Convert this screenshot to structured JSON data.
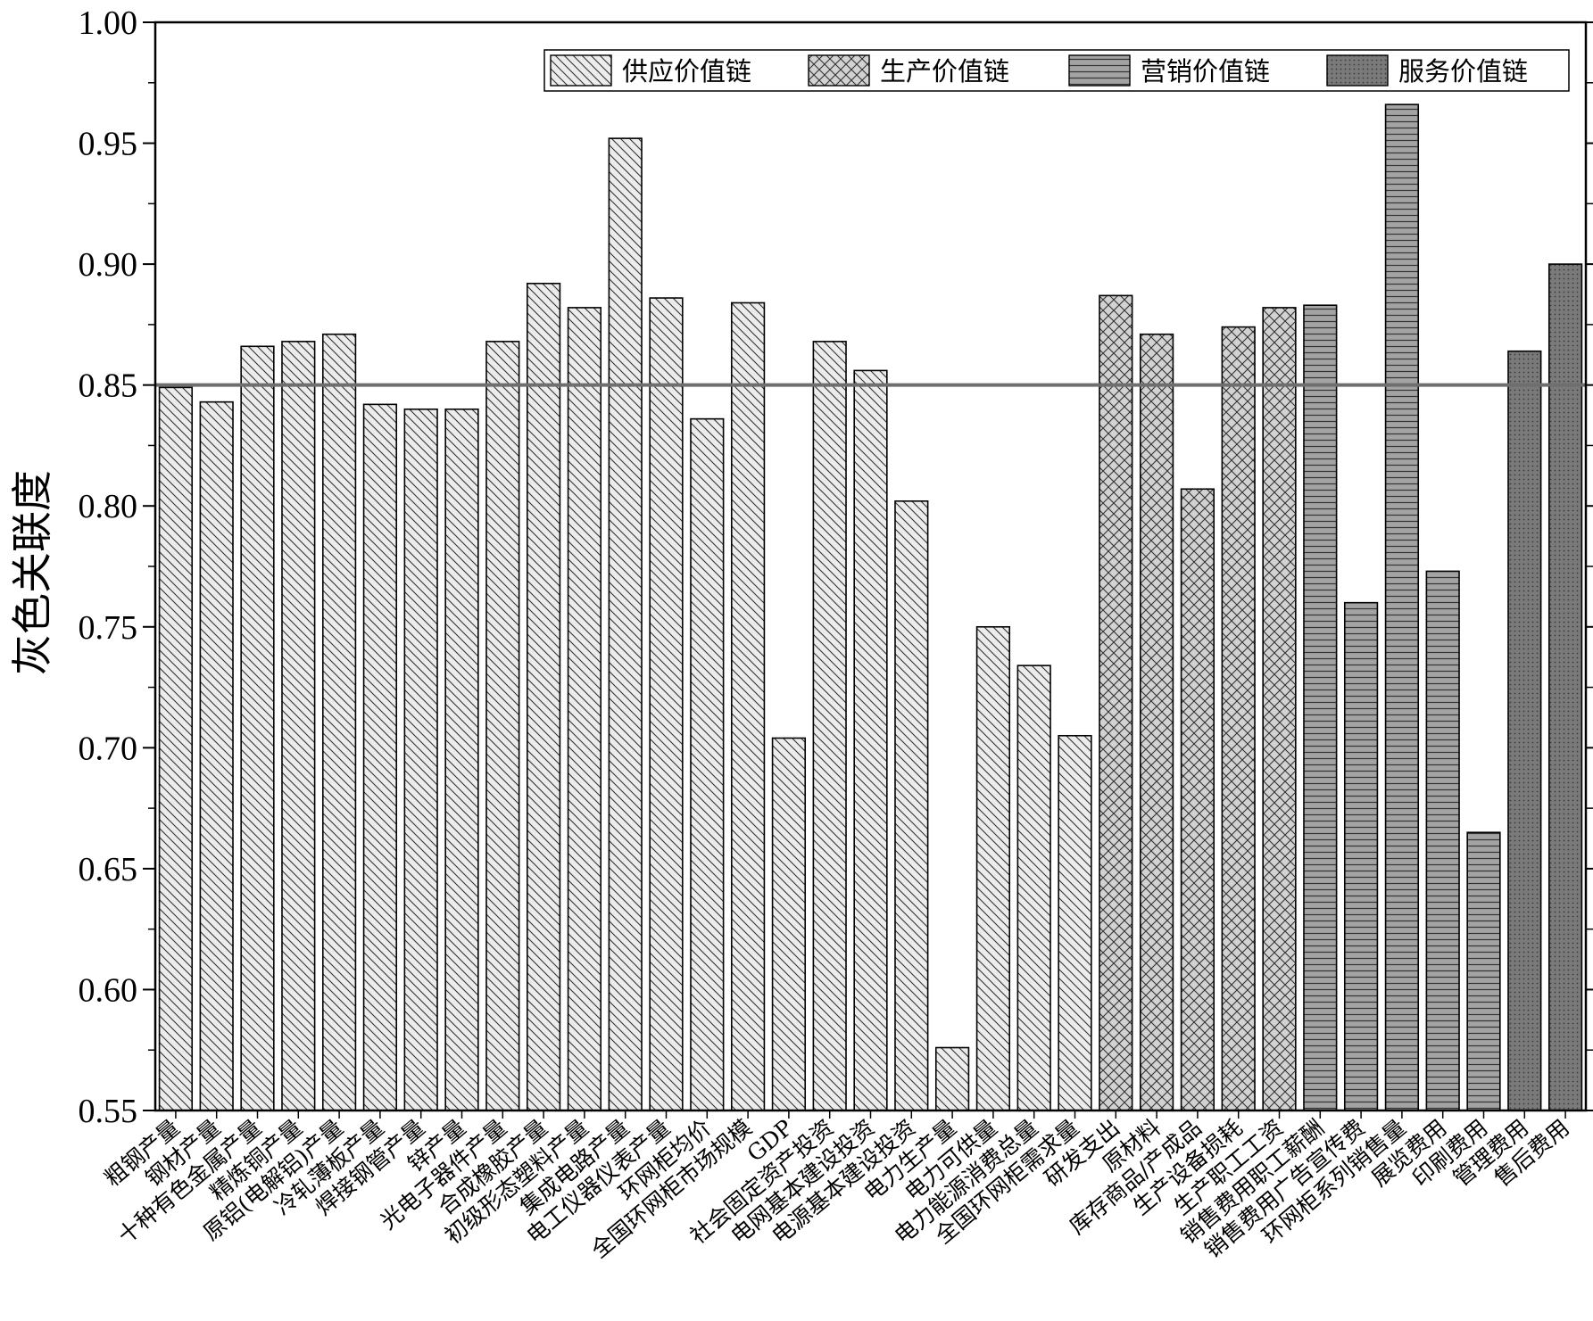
{
  "chart_data": {
    "type": "bar",
    "ylabel": "灰色关联度",
    "xlabel": "",
    "ylim": [
      0.55,
      1.0
    ],
    "yticks": [
      "0.55",
      "0.60",
      "0.65",
      "0.70",
      "0.75",
      "0.80",
      "0.85",
      "0.90",
      "0.95",
      "1.00"
    ],
    "reference_line": 0.85,
    "legend_position": "top-right",
    "grid": false,
    "series": [
      {
        "name": "供应价值链",
        "pattern": "hatch-back-diagonal",
        "fill": "#e6e6e6",
        "categories": [
          "粗钢产量",
          "钢材产量",
          "十种有色金属产量",
          "精炼铜产量",
          "原铝(电解铝)产量",
          "冷轧薄板产量",
          "焊接钢管产量",
          "锌产量",
          "光电子器件产量",
          "合成橡胶产量",
          "初级形态塑料产量",
          "集成电路产量",
          "电工仪器仪表产量",
          "环网柜均价",
          "全国环网柜市场规模",
          "GDP",
          "社会固定资产投资",
          "电网基本建设投资",
          "电源基本建设投资",
          "电力生产量",
          "电力可供量",
          "电力能源消费总量",
          "全国环网柜需求量"
        ],
        "values": [
          0.849,
          0.843,
          0.866,
          0.868,
          0.871,
          0.842,
          0.84,
          0.84,
          0.868,
          0.892,
          0.882,
          0.952,
          0.886,
          0.836,
          0.884,
          0.704,
          0.868,
          0.856,
          0.802,
          0.576,
          0.75,
          0.734,
          0.705
        ]
      },
      {
        "name": "生产价值链",
        "pattern": "crosshatch",
        "fill": "#d4d4d4",
        "categories": [
          "研发支出",
          "原材料",
          "库存商品/产成品",
          "生产设备损耗",
          "生产职工工资"
        ],
        "values": [
          0.887,
          0.871,
          0.807,
          0.874,
          0.882
        ]
      },
      {
        "name": "营销价值链",
        "pattern": "horizontal-lines",
        "fill": "#a6a6a6",
        "categories": [
          "销售费用职工薪酬",
          "销售费用广告宣传费",
          "环网柜系列销售量",
          "展览费用",
          "印刷费用"
        ],
        "values": [
          0.883,
          0.76,
          0.966,
          0.773,
          0.665
        ]
      },
      {
        "name": "服务价值链",
        "pattern": "dots",
        "fill": "#7a7a7a",
        "categories": [
          "管理费用",
          "售后费用"
        ],
        "values": [
          0.864,
          0.9
        ]
      }
    ]
  }
}
